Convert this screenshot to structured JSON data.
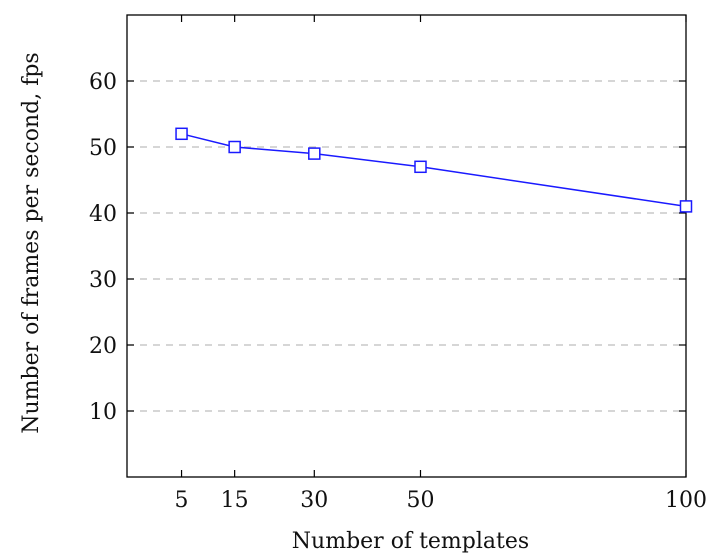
{
  "chart_data": {
    "type": "line",
    "title": "",
    "xlabel": "Number of templates",
    "ylabel": "Number of frames per second, fps",
    "x": [
      5,
      15,
      30,
      50,
      100
    ],
    "series": [
      {
        "values": [
          52,
          50,
          49,
          47,
          41
        ],
        "color": "#1a1aff",
        "marker": "square"
      }
    ],
    "xticks": [
      5,
      15,
      30,
      50,
      100
    ],
    "yticks": [
      10,
      20,
      30,
      40,
      50,
      60
    ],
    "xlim": [
      0,
      100
    ],
    "ylim": [
      0,
      70
    ],
    "grid": "y-dashed",
    "grid_color": "#bdbdbd",
    "legend": "none"
  }
}
